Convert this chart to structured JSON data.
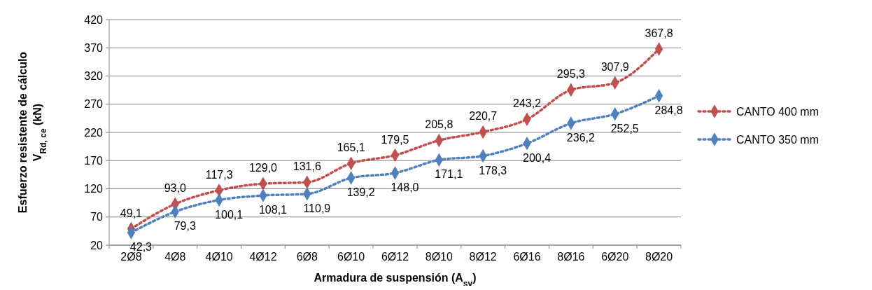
{
  "chart_data": {
    "type": "line",
    "xlabel": "Armadura de suspensión (A$_{sv}$)",
    "ylabel": "Esfuerzo resistente de cálculo\nV$_{Rd, ce}$  (kN)",
    "categories": [
      "2Ø8",
      "4Ø8",
      "4Ø10",
      "4Ø12",
      "6Ø8",
      "6Ø10",
      "6Ø12",
      "8Ø10",
      "8Ø12",
      "6Ø16",
      "8Ø16",
      "6Ø20",
      "8Ø20"
    ],
    "series": [
      {
        "name": "CANTO 400 mm",
        "color": "#c0504d",
        "values": [
          49.1,
          93.0,
          117.3,
          129.0,
          131.6,
          165.1,
          179.5,
          205.8,
          220.7,
          243.2,
          295.3,
          307.9,
          367.8
        ],
        "value_labels": [
          "49,1",
          "93,0",
          "117,3",
          "129,0",
          "131,6",
          "165,1",
          "179,5",
          "205,8",
          "220,7",
          "243,2",
          "295,3",
          "307,9",
          "367,8"
        ]
      },
      {
        "name": "CANTO 350 mm",
        "color": "#4f81bd",
        "values": [
          42.3,
          79.3,
          100.1,
          108.1,
          110.9,
          139.2,
          148.0,
          171.1,
          178.3,
          200.4,
          236.2,
          252.5,
          284.8
        ],
        "value_labels": [
          "42,3",
          "79,3",
          "100,1",
          "108,1",
          "110,9",
          "139,2",
          "148,0",
          "171,1",
          "178,3",
          "200,4",
          "236,2",
          "252,5",
          "284,8"
        ]
      }
    ],
    "ylim": [
      20,
      420
    ],
    "yticks": [
      20,
      70,
      120,
      170,
      220,
      270,
      320,
      370,
      420
    ],
    "grid": "y",
    "legend": "right",
    "marker": "diamond",
    "line_style": "dotted"
  }
}
